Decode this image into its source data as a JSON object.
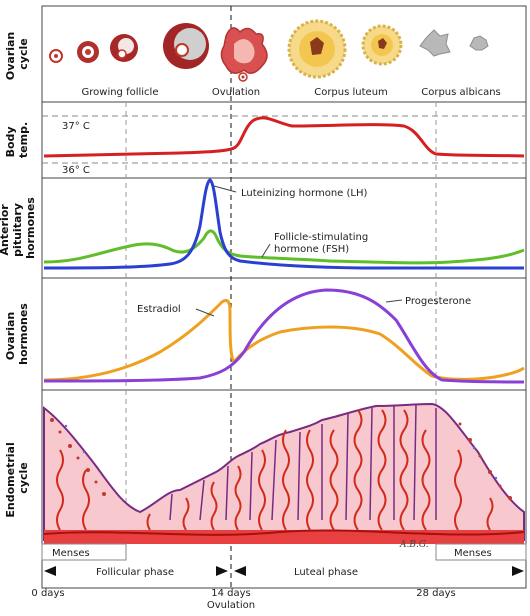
{
  "panels": {
    "ovarian_cycle": {
      "title_1": "Ovarian",
      "title_2": "cycle"
    },
    "body_temp": {
      "title_1": "Body",
      "title_2": "temp."
    },
    "pituitary": {
      "title_1": "Anterior",
      "title_2": "pituitary",
      "title_3": "hormones"
    },
    "ovarian_hormones": {
      "title_1": "Ovarian",
      "title_2": "hormones"
    },
    "endometrial": {
      "title_1": "Endometrial",
      "title_2": "cycle"
    }
  },
  "ovary_stages": {
    "growing_follicle": "Growing follicle",
    "ovulation": "Ovulation",
    "corpus_luteum": "Corpus luteum",
    "corpus_albicans": "Corpus albicans"
  },
  "temperature": {
    "high": "37° C",
    "low": "36° C"
  },
  "hormones": {
    "lh": "Luteinizing hormone (LH)",
    "fsh_1": "Follicle-stimulating",
    "fsh_2": "hormone (FSH)",
    "estradiol": "Estradiol",
    "progesterone": "Progesterone"
  },
  "phases": {
    "menses_left": "Menses",
    "menses_right": "Menses",
    "follicular": "Follicular phase",
    "luteal": "Luteal phase"
  },
  "axis": {
    "day0": "0 days",
    "day14": "14 days",
    "ovulation": "Ovulation",
    "day28": "28 days"
  },
  "signature": "A.B.G.",
  "colors": {
    "temp": "#d62020",
    "lh": "#2b3fd0",
    "fsh": "#5fbe2a",
    "estradiol": "#f0a020",
    "progesterone": "#8a3fd6",
    "endometrium_fill": "#f7c9cf",
    "endometrium_edge": "#7a2a82",
    "artery": "#d32a1a"
  }
}
